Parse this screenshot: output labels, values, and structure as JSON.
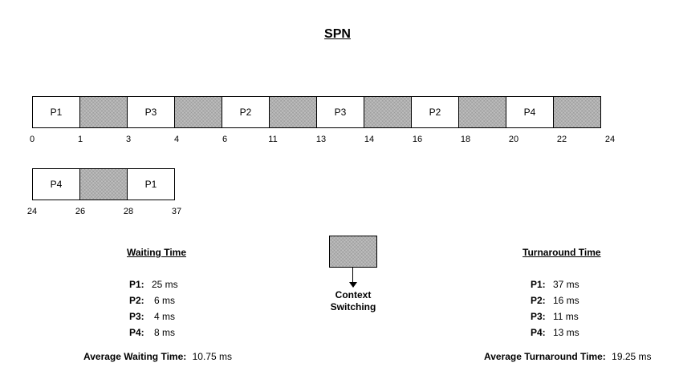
{
  "title": "SPN",
  "gantt_row1": {
    "cells": [
      {
        "label": "P1",
        "type": "process"
      },
      {
        "label": "",
        "type": "context-switch"
      },
      {
        "label": "P3",
        "type": "process"
      },
      {
        "label": "",
        "type": "context-switch"
      },
      {
        "label": "P2",
        "type": "process"
      },
      {
        "label": "",
        "type": "context-switch"
      },
      {
        "label": "P3",
        "type": "process"
      },
      {
        "label": "",
        "type": "context-switch"
      },
      {
        "label": "P2",
        "type": "process"
      },
      {
        "label": "",
        "type": "context-switch"
      },
      {
        "label": "P4",
        "type": "process"
      },
      {
        "label": "",
        "type": "context-switch"
      }
    ],
    "ticks": [
      "0",
      "1",
      "3",
      "4",
      "6",
      "11",
      "13",
      "14",
      "16",
      "18",
      "20",
      "22",
      "24"
    ]
  },
  "gantt_row2": {
    "cells": [
      {
        "label": "P4",
        "type": "process"
      },
      {
        "label": "",
        "type": "context-switch"
      },
      {
        "label": "P1",
        "type": "process"
      }
    ],
    "ticks": [
      "24",
      "26",
      "28",
      "37"
    ]
  },
  "legend": {
    "label_line1": "Context",
    "label_line2": "Switching",
    "color": "#bdbdbd"
  },
  "waiting": {
    "heading": "Waiting Time",
    "rows": [
      {
        "key": "P1:",
        "value": "25 ms"
      },
      {
        "key": "P2:",
        "value": "6 ms"
      },
      {
        "key": "P3:",
        "value": "4 ms"
      },
      {
        "key": "P4:",
        "value": "8 ms"
      }
    ],
    "average_label": "Average Waiting Time:",
    "average_value": "10.75 ms"
  },
  "turnaround": {
    "heading": "Turnaround Time",
    "rows": [
      {
        "key": "P1:",
        "value": "37 ms"
      },
      {
        "key": "P2:",
        "value": "16 ms"
      },
      {
        "key": "P3:",
        "value": "11 ms"
      },
      {
        "key": "P4:",
        "value": "13 ms"
      }
    ],
    "average_label": "Average Turnaround Time:",
    "average_value": "19.25 ms"
  }
}
